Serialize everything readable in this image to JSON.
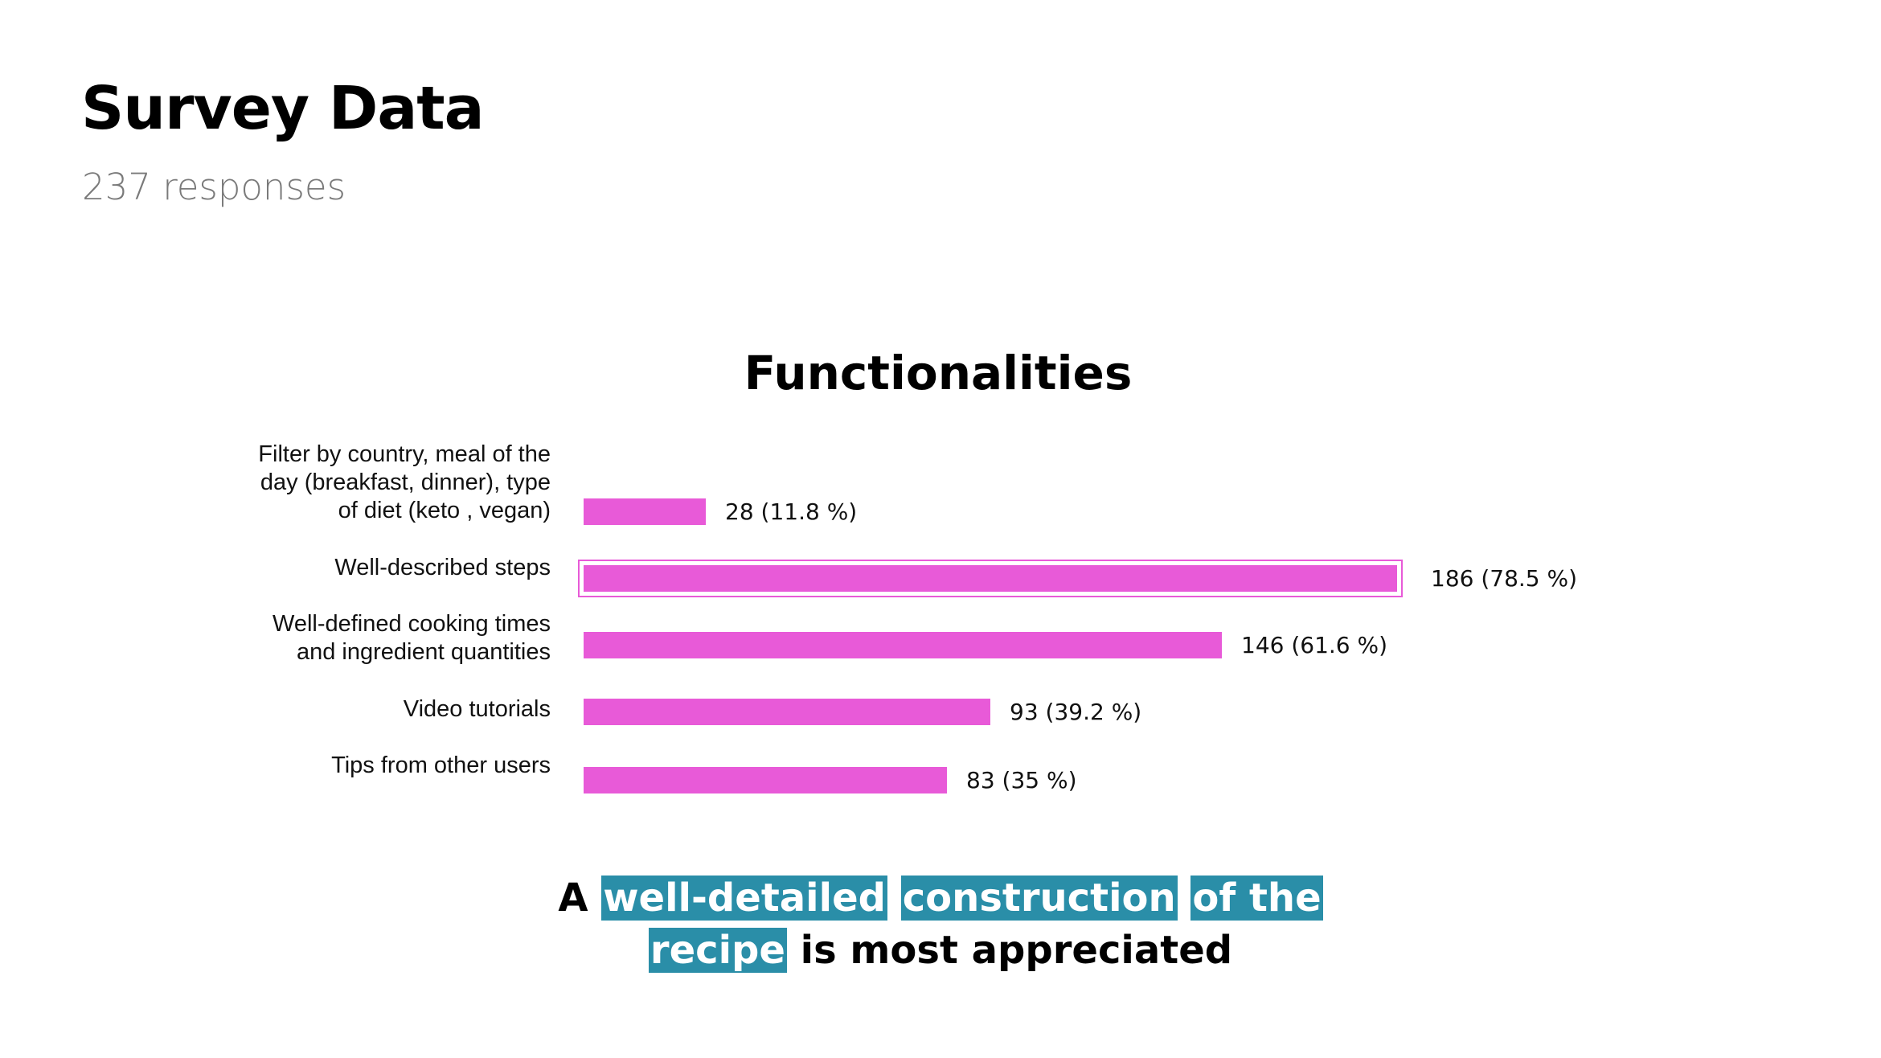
{
  "header": {
    "title": "Survey Data",
    "subtitle": "237 responses"
  },
  "colors": {
    "bar": "#e85ad8",
    "highlight": "#2a8ea8"
  },
  "chart_data": {
    "type": "bar",
    "orientation": "horizontal",
    "title": "Functionalities",
    "categories": [
      "Filter by country, meal of the day (breakfast, dinner), type of diet (keto , vegan)",
      "Well-described steps",
      "Well-defined cooking times and ingredient quantities",
      "Video tutorials",
      "Tips from other users"
    ],
    "category_lines": [
      [
        "Filter by country, meal of the",
        "day (breakfast, dinner), type",
        "of diet (keto , vegan)"
      ],
      [
        "Well-described steps"
      ],
      [
        "Well-defined cooking times",
        "and ingredient quantities"
      ],
      [
        "Video tutorials"
      ],
      [
        "Tips from other users"
      ]
    ],
    "values": [
      28,
      186,
      146,
      93,
      83
    ],
    "data_labels": [
      "28 (11.8 %)",
      "186 (78.5 %)",
      "146 (61.6 %)",
      "93 (39.2 %)",
      "83 (35 %)"
    ],
    "xlim": [
      0,
      186
    ],
    "highlighted_index": 1,
    "grid": false
  },
  "caption": {
    "line1_plain": "A",
    "line1_hl1": "well-detailed",
    "line1_hl2": "construction",
    "line1_hl3": "of the",
    "line2_hl": "recipe",
    "line2_plain": "is most appreciated"
  }
}
